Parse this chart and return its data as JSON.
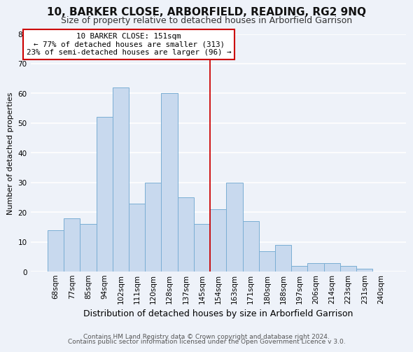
{
  "title": "10, BARKER CLOSE, ARBORFIELD, READING, RG2 9NQ",
  "subtitle": "Size of property relative to detached houses in Arborfield Garrison",
  "xlabel": "Distribution of detached houses by size in Arborfield Garrison",
  "ylabel": "Number of detached properties",
  "footer_line1": "Contains HM Land Registry data © Crown copyright and database right 2024.",
  "footer_line2": "Contains public sector information licensed under the Open Government Licence v 3.0.",
  "bar_labels": [
    "68sqm",
    "77sqm",
    "85sqm",
    "94sqm",
    "102sqm",
    "111sqm",
    "120sqm",
    "128sqm",
    "137sqm",
    "145sqm",
    "154sqm",
    "163sqm",
    "171sqm",
    "180sqm",
    "188sqm",
    "197sqm",
    "206sqm",
    "214sqm",
    "223sqm",
    "231sqm",
    "240sqm"
  ],
  "bar_values": [
    14,
    18,
    16,
    52,
    62,
    23,
    30,
    60,
    25,
    16,
    21,
    30,
    17,
    7,
    9,
    2,
    3,
    3,
    2,
    1,
    0
  ],
  "bar_color": "#c8d9ee",
  "bar_edge_color": "#7aaed4",
  "vline_position": 10.0,
  "vline_color": "#cc0000",
  "annotation_title": "10 BARKER CLOSE: 151sqm",
  "annotation_line1": "← 77% of detached houses are smaller (313)",
  "annotation_line2": "23% of semi-detached houses are larger (96) →",
  "annotation_box_color": "#ffffff",
  "annotation_box_edge": "#cc0000",
  "ylim": [
    0,
    80
  ],
  "yticks": [
    0,
    10,
    20,
    30,
    40,
    50,
    60,
    70,
    80
  ],
  "background_color": "#eef2f9",
  "grid_color": "#ffffff",
  "title_fontsize": 11,
  "subtitle_fontsize": 9,
  "ylabel_fontsize": 8,
  "xlabel_fontsize": 9,
  "tick_fontsize": 7.5,
  "footer_fontsize": 6.5
}
